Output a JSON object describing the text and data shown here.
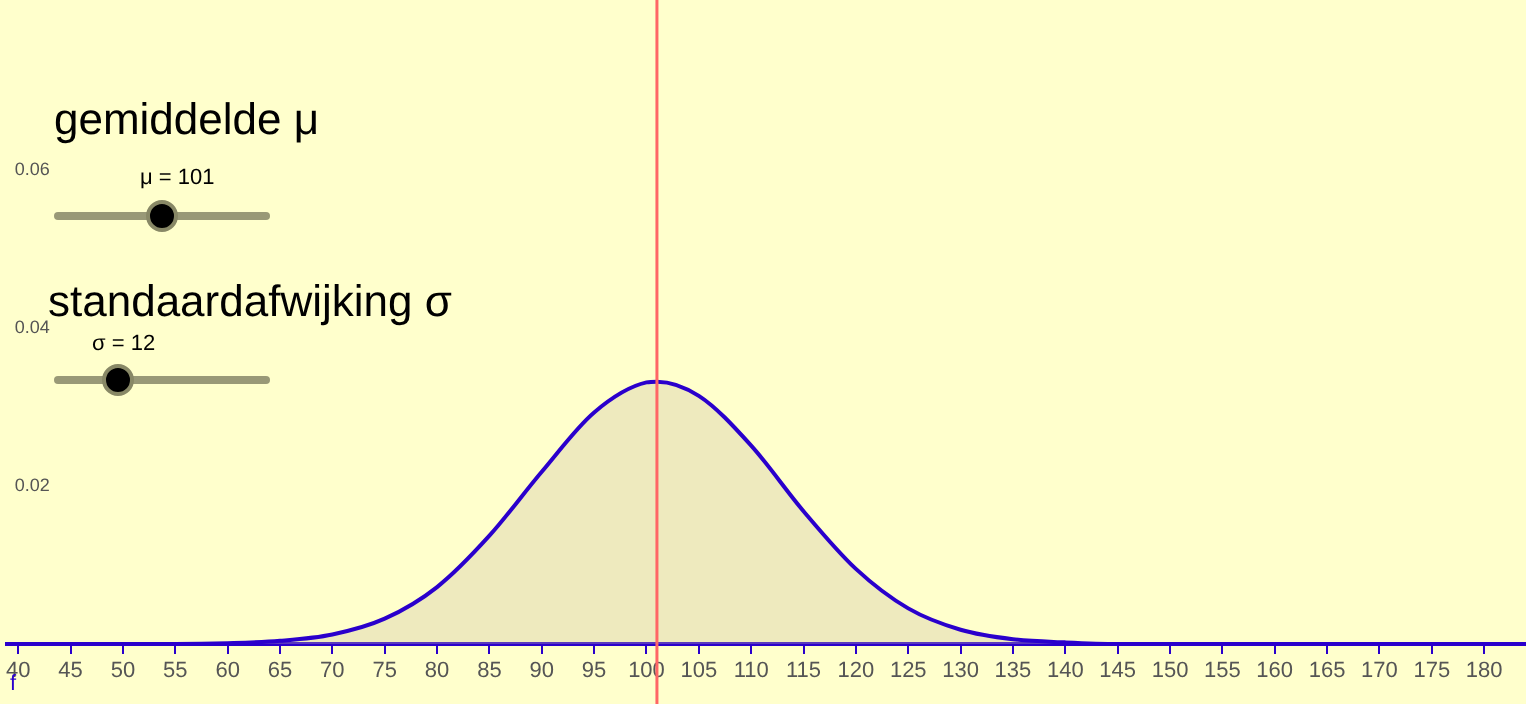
{
  "chart_data": {
    "type": "area",
    "x": [
      40,
      45,
      50,
      55,
      60,
      65,
      70,
      75,
      80,
      85,
      90,
      95,
      100,
      101,
      105,
      110,
      115,
      120,
      125,
      130,
      135,
      140,
      145,
      150,
      155,
      160,
      165,
      170,
      175,
      180
    ],
    "series": [
      {
        "name": "f",
        "color": "#2a00cc",
        "values": [
          0,
          0,
          0,
          0,
          0.0001,
          0.0004,
          0.0012,
          0.0032,
          0.0072,
          0.0137,
          0.0218,
          0.0293,
          0.0331,
          0.0332,
          0.0314,
          0.0251,
          0.0168,
          0.0095,
          0.0045,
          0.0018,
          0.0006,
          0.0002,
          0,
          0,
          0,
          0,
          0,
          0,
          0,
          0
        ]
      }
    ],
    "xlim": [
      38.9,
      184
    ],
    "xticks": [
      40,
      45,
      50,
      55,
      60,
      65,
      70,
      75,
      80,
      85,
      90,
      95,
      100,
      105,
      110,
      115,
      120,
      125,
      130,
      135,
      140,
      145,
      150,
      155,
      160,
      165,
      170,
      175,
      180
    ],
    "ylim": [
      -0.0076,
      0.0815
    ],
    "yticks": [
      0.02,
      0.04,
      0.06
    ],
    "ref_lines": [
      {
        "axis": "x",
        "value": 101,
        "color": "#ff6666"
      }
    ],
    "annotations": [
      "gemiddelde μ",
      "μ = 101",
      "standaardafwijking σ",
      "σ = 12"
    ]
  }
}
